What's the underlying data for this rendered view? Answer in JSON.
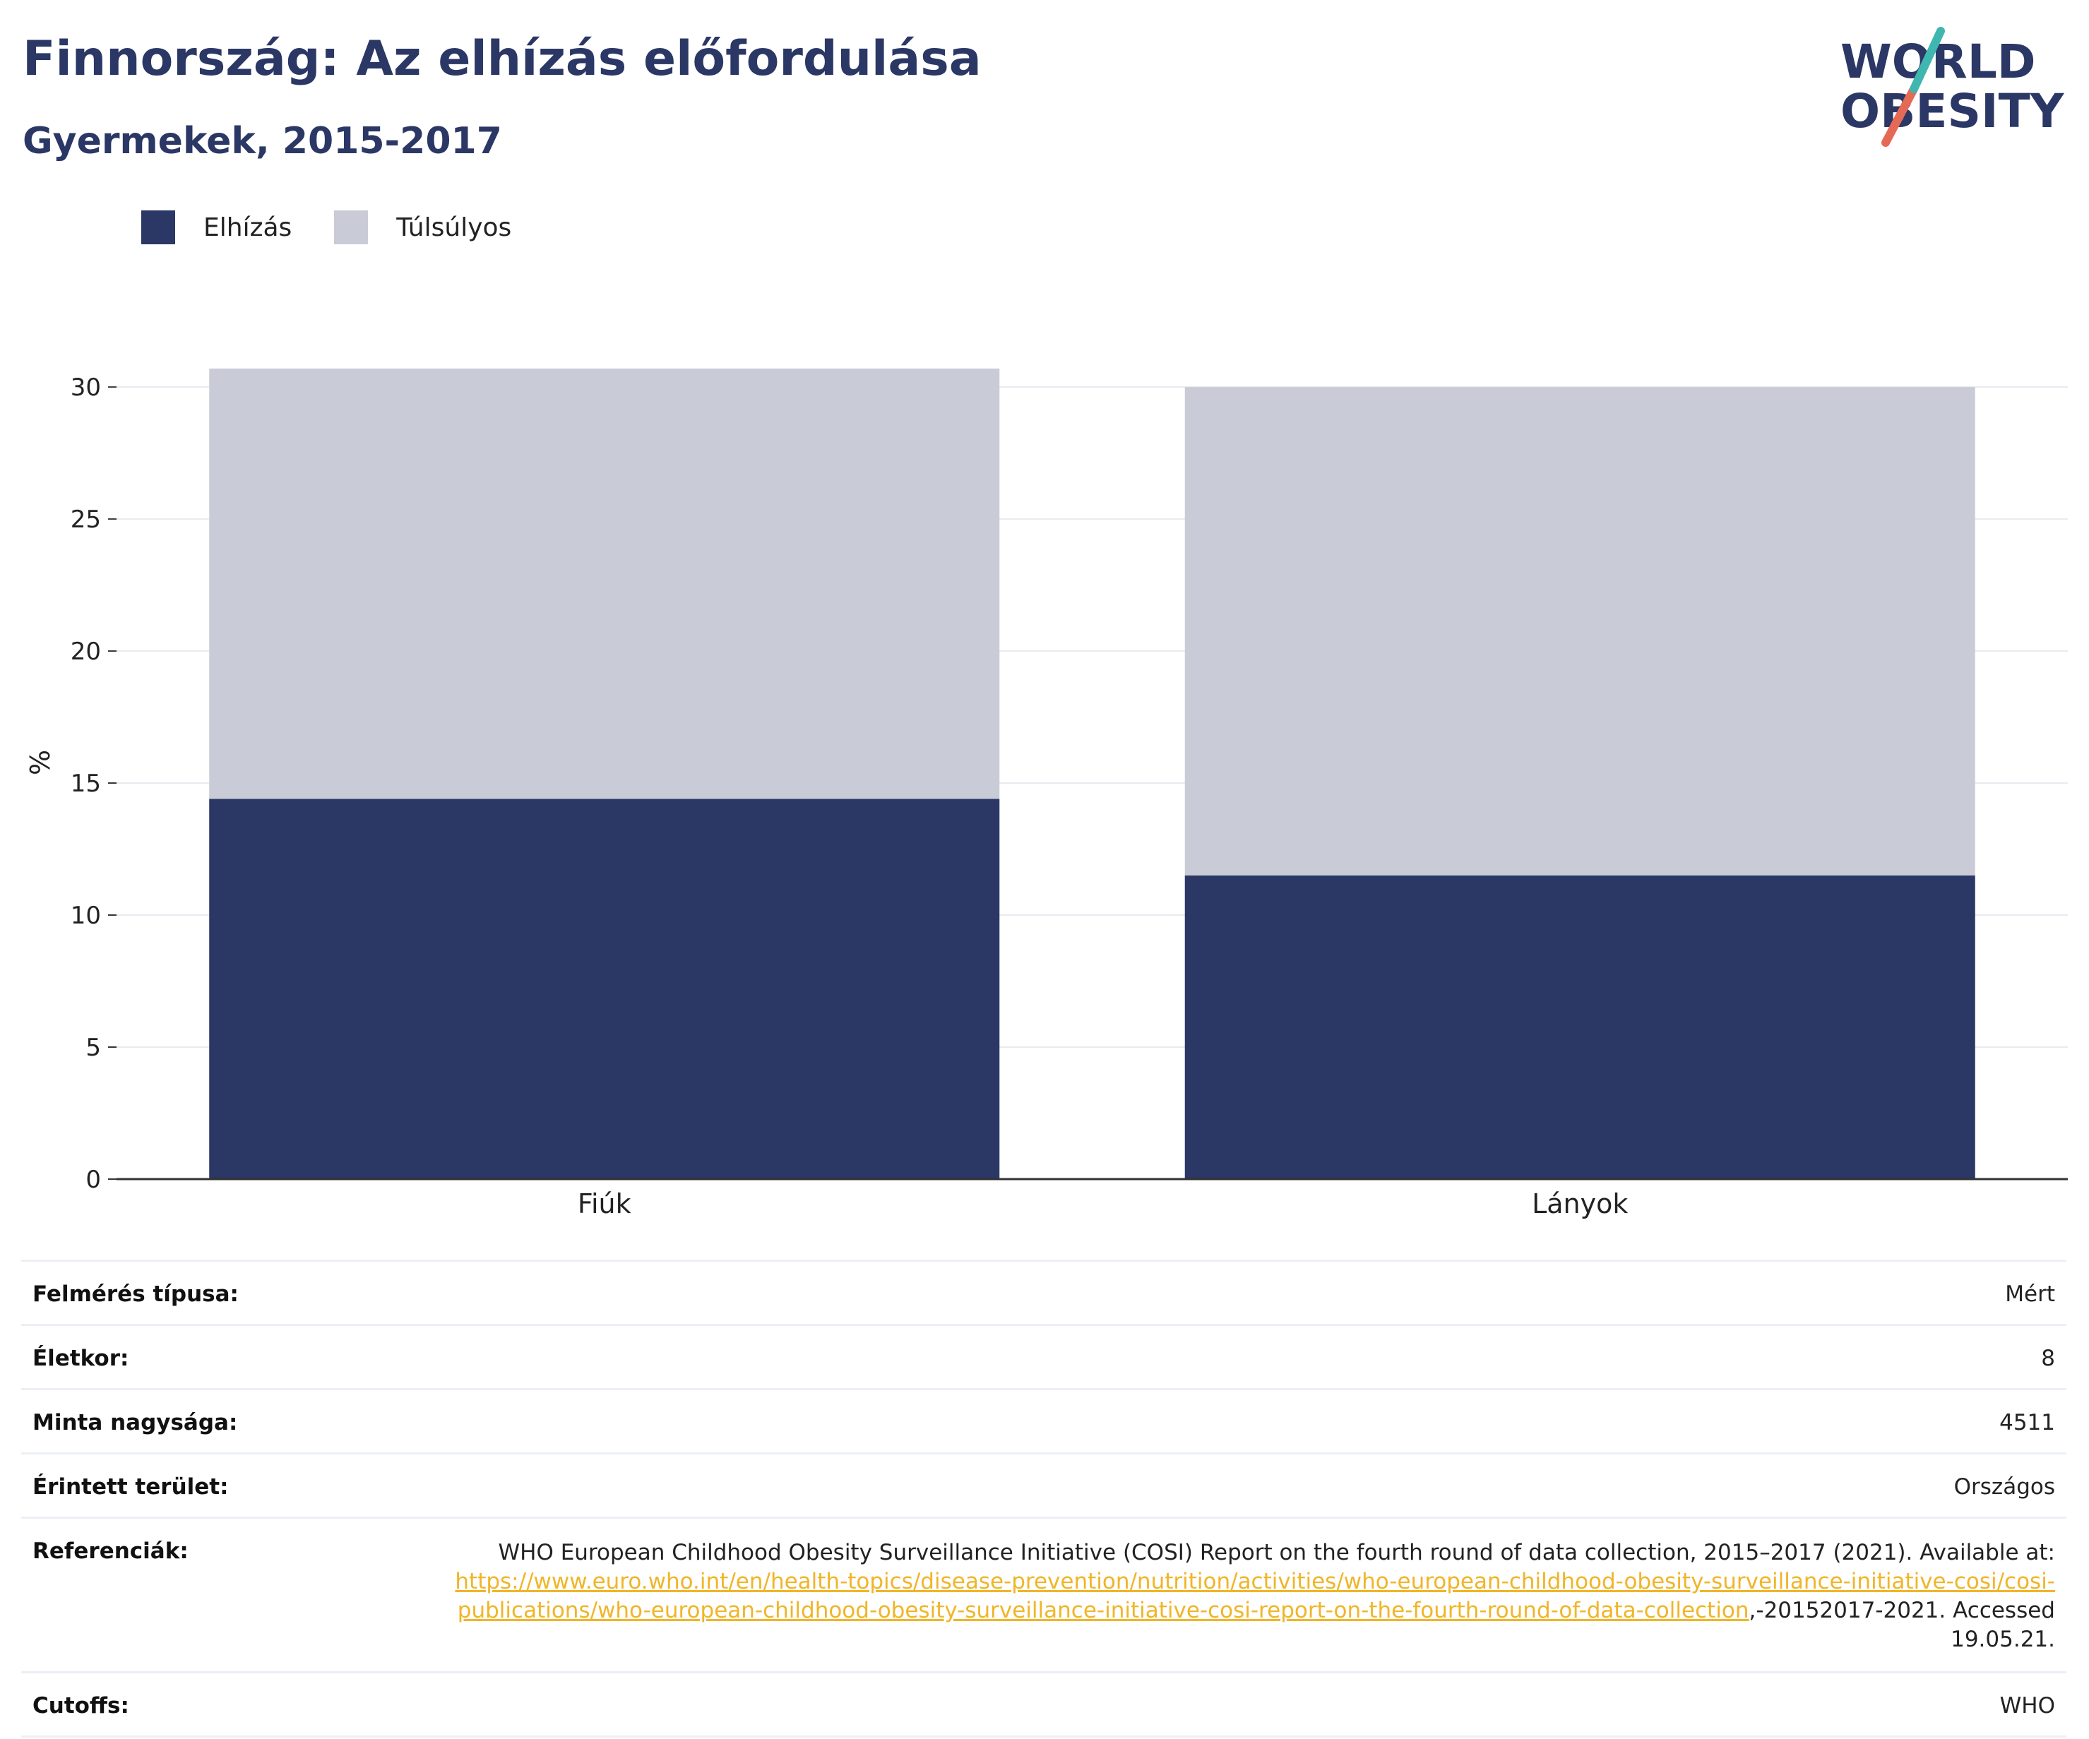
{
  "header": {
    "title": "Finnország: Az elhízás előfordulása",
    "subtitle": "Gyermekek, 2015-2017"
  },
  "logo": {
    "line1": "WORLD",
    "line2": "OBESITY"
  },
  "colors": {
    "obesity": "#2b3765",
    "overweight": "#c9ccd7",
    "link": "#f0b528",
    "title": "#2b3765"
  },
  "chart_data": {
    "type": "bar",
    "stacked": true,
    "categories": [
      "Fiúk",
      "Lányok"
    ],
    "series": [
      {
        "name": "Elhízás",
        "values": [
          14.4,
          11.5
        ]
      },
      {
        "name": "Túlsúlyos",
        "values": [
          16.3,
          18.5
        ]
      }
    ],
    "ylabel": "%",
    "ylim": [
      0,
      30.7
    ],
    "yticks": [
      "0",
      "5",
      "10",
      "15",
      "20",
      "25",
      "30"
    ],
    "grid": true,
    "legend": "top-left"
  },
  "info": {
    "survey_type": {
      "label": "Felmérés típusa:",
      "value": "Mért"
    },
    "age": {
      "label": "Életkor:",
      "value": "8"
    },
    "sample_size": {
      "label": "Minta nagysága:",
      "value": "4511"
    },
    "area": {
      "label": "Érintett terület:",
      "value": "Országos"
    },
    "references": {
      "label": "Referenciák:",
      "text_before": "WHO European Childhood Obesity Surveillance Initiative (COSI) Report on the fourth round of data collection, 2015–2017 (2021). Available at: ",
      "link": "https://www.euro.who.int/en/health-topics/disease-prevention/nutrition/activities/who-european-childhood-obesity-surveillance-initiative-cosi/cosi-publications/who-european-childhood-obesity-surveillance-initiative-cosi-report-on-the-fourth-round-of-data-collection",
      "text_after": ",-20152017-2021. Accessed 19.05.21."
    },
    "cutoffs": {
      "label": "Cutoffs:",
      "value": "WHO"
    }
  }
}
